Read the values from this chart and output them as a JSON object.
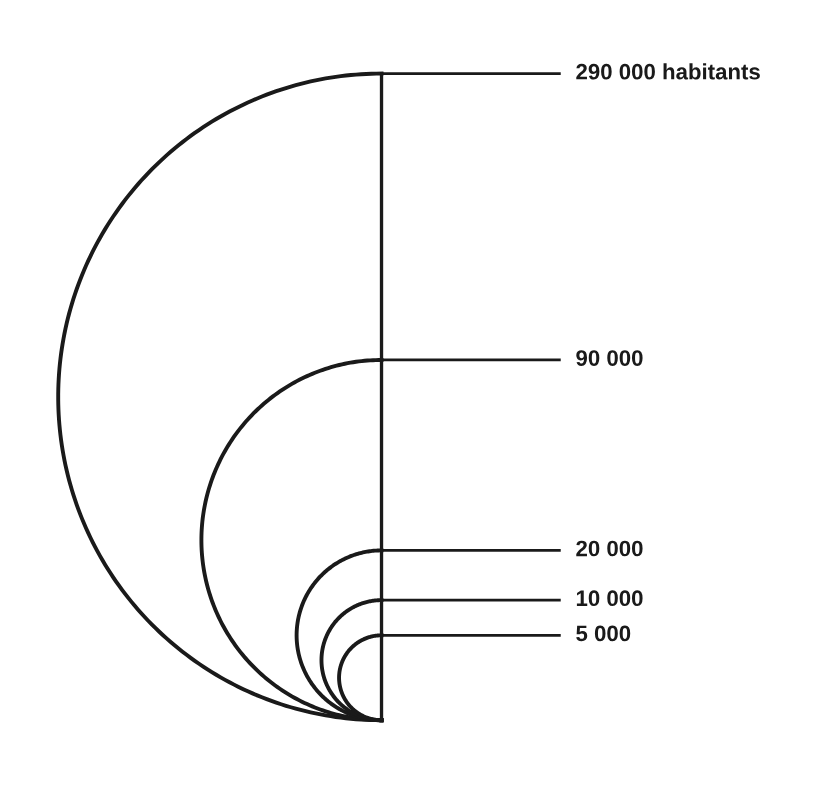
{
  "chart_data": {
    "type": "other",
    "values": [
      290000,
      90000,
      20000,
      10000,
      5000
    ],
    "value_labels": [
      "290 000 habitants",
      "90 000",
      "20 000",
      "10 000",
      "5 000"
    ],
    "color": "#1a1a1a"
  }
}
